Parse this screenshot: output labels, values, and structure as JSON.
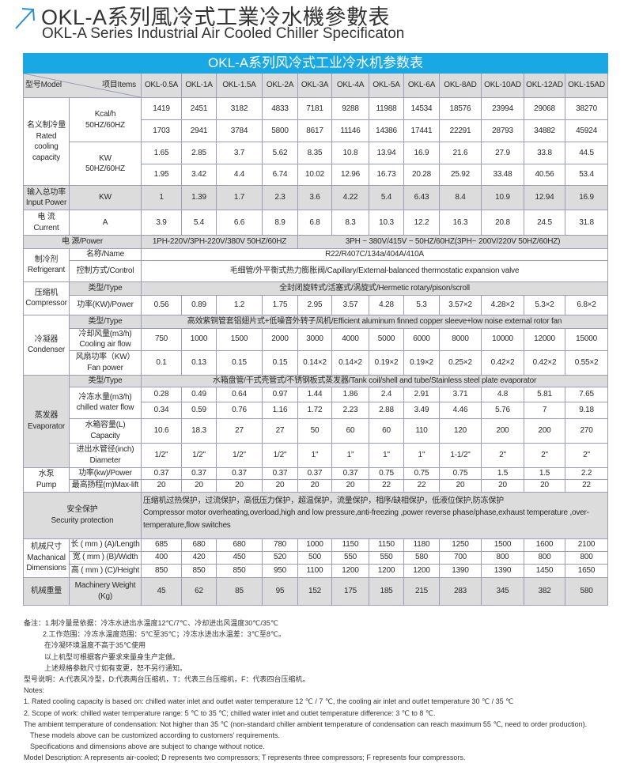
{
  "title": {
    "zh": "OKL-A系列風冷式工業冷水機參數表",
    "en": "OKL-A Series Industrial Air Cooled Chiller Specificaton",
    "icon": "arrow-up-right-icon",
    "accent": "#19a8e4"
  },
  "table": {
    "banner": "OKL-A系列风冷式工业冷水机参数表",
    "model_label": "型号Model",
    "items_label": "项目Items",
    "models": [
      "OKL-0.5A",
      "OKL-1A",
      "OKL-1.5A",
      "OKL-2A",
      "OKL-3A",
      "OKL-4A",
      "OKL-5A",
      "OKL-6A",
      "OKL-8AD",
      "OKL-10AD",
      "OKL-12AD",
      "OKL-15AD"
    ]
  },
  "cooling": {
    "label": "名义制冷量\nRated\ncooling\ncapacity",
    "kcal_unit": "Kcal/h\n50HZ/60HZ",
    "kcal_50": [
      "1419",
      "2451",
      "3182",
      "4833",
      "7181",
      "9288",
      "11988",
      "14534",
      "18576",
      "23994",
      "29068",
      "38270"
    ],
    "kcal_60": [
      "1703",
      "2941",
      "3784",
      "5800",
      "8617",
      "11146",
      "14386",
      "17441",
      "22291",
      "28793",
      "34882",
      "45924"
    ],
    "kw_unit": "KW\n50HZ/60HZ",
    "kw_50": [
      "1.65",
      "2.85",
      "3.7",
      "5.62",
      "8.35",
      "10.8",
      "13.94",
      "16.9",
      "21.6",
      "27.9",
      "33.8",
      "44.5"
    ],
    "kw_60": [
      "1.95",
      "3.42",
      "4.4",
      "6.74",
      "10.02",
      "12.96",
      "16.73",
      "20.28",
      "25.92",
      "33.48",
      "40.56",
      "53.4"
    ]
  },
  "input_power": {
    "label": "输入总功率\nInput Power",
    "unit": "KW",
    "values": [
      "1",
      "1.39",
      "1.7",
      "2.3",
      "3.6",
      "4.22",
      "5.4",
      "6.43",
      "8.4",
      "10.9",
      "12.94",
      "16.9"
    ]
  },
  "current": {
    "label": "电  流\nCurrent",
    "unit": "A",
    "values": [
      "3.9",
      "5.4",
      "6.6",
      "8.9",
      "6.8",
      "8.3",
      "10.3",
      "12.2",
      "16.3",
      "20.8",
      "24.5",
      "31.8"
    ]
  },
  "power": {
    "label": "电        源/Power",
    "single_phase": "1PH-220V/3PH-220V/380V 50HZ/60HZ",
    "three_phase": "3PH ~ 380V/415V ~ 50HZ/60HZ(3PH~ 200V/220V   50HZ/60HZ)"
  },
  "refrigerant": {
    "label": "制冷剂\nRefrigerant",
    "name_label": "名称/Name",
    "name": "R22/R407C/134a/404A/410A",
    "control_label": "控制方式/Control",
    "control": "毛细管/外平衡式热力膨胀阀/Capillary/External-balanced thermostatic expansion valve"
  },
  "compressor": {
    "label": "压缩机\nCompressor",
    "type_label": "类型/Type",
    "type": "全封闭旋转式/活塞式/涡旋式/Hermetic rotary/pison/scroll",
    "power_label": "功率(KW)/Power",
    "power": [
      "0.56",
      "0.89",
      "1.2",
      "1.75",
      "2.95",
      "3.57",
      "4.28",
      "5.3",
      "3.57×2",
      "4.28×2",
      "5.3×2",
      "6.8×2"
    ]
  },
  "condenser": {
    "label": "冷凝器\nCondenser",
    "type_label": "类型/Type",
    "type": "高效紫铜管套铝翅片式+低噪音外转子风机/Efficient aluminum finned copper sleeve+low noise external rotor fan",
    "airflow_label": "冷却风量(m3/h)\nCooling air flow",
    "airflow": [
      "750",
      "1000",
      "1500",
      "2000",
      "3000",
      "4000",
      "5000",
      "6000",
      "8000",
      "10000",
      "12000",
      "15000"
    ],
    "fan_label": "风扇功率（KW）\nFan power",
    "fan": [
      "0.1",
      "0.13",
      "0.15",
      "0.15",
      "0.14×2",
      "0.14×2",
      "0.19×2",
      "0.19×2",
      "0.25×2",
      "0.42×2",
      "0.42×2",
      "0.55×2"
    ]
  },
  "evaporator": {
    "label": "蒸发器\nEvaporator",
    "type_label": "类型/Type",
    "type": "水箱盘管/干式壳管式/不锈钢板式蒸发器/Tank coil/shell and tube/Stainless steel plate evaporator",
    "flow_label": "冷冻水量(m3/h)\nchilled water flow",
    "flow_50": [
      "0.28",
      "0.49",
      "0.64",
      "0.97",
      "1.44",
      "1.86",
      "2.4",
      "2.91",
      "3.71",
      "4.8",
      "5.81",
      "7.65"
    ],
    "flow_60": [
      "0.34",
      "0.59",
      "0.76",
      "1.16",
      "1.72",
      "2.23",
      "2.88",
      "3.49",
      "4.46",
      "5.76",
      "7",
      "9.18"
    ],
    "capacity_label": "水箱容量(L)\nCapacity",
    "capacity": [
      "10.6",
      "18.3",
      "27",
      "27",
      "50",
      "60",
      "60",
      "110",
      "120",
      "200",
      "200",
      "270"
    ],
    "diameter_label": "进出水管径(inch)\nDiameter",
    "diameter": [
      "1/2\"",
      "1/2\"",
      "1/2\"",
      "1/2\"",
      "1\"",
      "1\"",
      "1\"",
      "1\"",
      "1-1/2\"",
      "2\"",
      "2\"",
      "2\""
    ]
  },
  "pump": {
    "label": "水泵\nPump",
    "power_label": "功率(kw)/Power",
    "power": [
      "0.37",
      "0.37",
      "0.37",
      "0.37",
      "0.37",
      "0.37",
      "0.75",
      "0.75",
      "0.75",
      "1.5",
      "1.5",
      "2.2"
    ],
    "lift_label": "最高扬程(m)Max-lift",
    "lift": [
      "20",
      "20",
      "20",
      "20",
      "20",
      "20",
      "22",
      "22",
      "20",
      "20",
      "20",
      "22"
    ]
  },
  "security": {
    "label": "安全保护\nSecurity protection",
    "zh": "压缩机过热保护，过流保护，高低压力保护，超温保护，流量保护，相序/缺相保护，低液位保护,防冻保护",
    "en": "Compressor motor overheating,overload,high and low pressure,anti-freezing ,power reverse phase/phase,exhaust temperature ,over-temperature,flow switches"
  },
  "dimensions": {
    "label": "机械尺寸\nMachanical\nDimensions",
    "length_label": "长 ( mm ) (A)/Length",
    "length": [
      "685",
      "680",
      "680",
      "780",
      "1000",
      "1150",
      "1150",
      "1180",
      "1250",
      "1500",
      "1600",
      "2100"
    ],
    "width_label": "宽 ( mm ) (B)/Width",
    "width": [
      "400",
      "420",
      "450",
      "520",
      "500",
      "550",
      "550",
      "580",
      "700",
      "800",
      "800",
      "800"
    ],
    "height_label": "高 ( mm ) (C)/Height",
    "height": [
      "850",
      "850",
      "850",
      "950",
      "1100",
      "1200",
      "1200",
      "1200",
      "1390",
      "1390",
      "1450",
      "1650"
    ]
  },
  "weight": {
    "label": "机械重量",
    "unit": "Machinery Weight\n(Kg)",
    "values": [
      "45",
      "62",
      "85",
      "95",
      "152",
      "175",
      "185",
      "215",
      "283",
      "345",
      "382",
      "580"
    ]
  },
  "notes": {
    "zh": [
      "备注：1.制冷量是依据：冷冻水进出水温度12℃/7℃、冷却进出风温度30℃/35℃",
      "2.工作范围：冷冻水温度范围：5℃至35℃；冷冻水进出水温差：3℃至8℃。",
      "在冷凝环境温度不高于35℃使用",
      "以上机型可根据客户要求来量身生产定做。",
      "上述规格参数尺寸如有变更，恕不另行通知。",
      "型号说明：A:代表风冷型，D:代表两台压缩机，T：代表三台压缩机，F：代表四台压缩机。"
    ],
    "en": [
      "Notes:",
      "1. Rated cooling capacity is based on: chilled water inlet and outlet water temperature 12 ℃ / 7 ℃, the cooling air inlet and outlet temperature 30 ℃ / 35 ℃",
      "2. Scope of work: chilled water temperature range: 5 ℃ to 35 ℃; chilled water inlet and outlet temperature difference: 3 ℃ to 8 ℃.",
      "The ambient temperature of condensation: Not higher than 35 ℃ (non-standard chiller ambient temperature of condensation can reach maximum 55 ℃, need to order production).",
      "These models above can be customized according to customers’  requirements.",
      "Specifications and dimensions above are subject to change without notice.",
      "Model Description: A represents air-cooled; D represents two compressors; T represents three compressors; F represents four compressors."
    ]
  }
}
